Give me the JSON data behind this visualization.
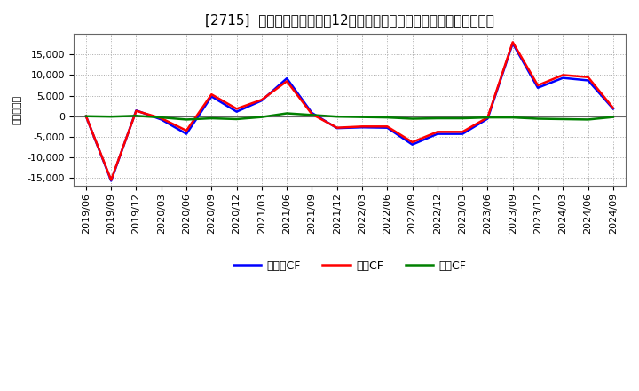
{
  "title": "[2715]  キャッシュフローの12か月移動合計の対前年同期増減額の推移",
  "ylabel": "（百万円）",
  "x_labels": [
    "2019/06",
    "2019/09",
    "2019/12",
    "2020/03",
    "2020/06",
    "2020/09",
    "2020/12",
    "2021/03",
    "2021/06",
    "2021/09",
    "2021/12",
    "2022/03",
    "2022/06",
    "2022/09",
    "2022/12",
    "2023/03",
    "2023/06",
    "2023/09",
    "2023/12",
    "2024/03",
    "2024/06",
    "2024/09"
  ],
  "operating_cf": [
    0,
    -15500,
    1300,
    -500,
    -3500,
    5300,
    1800,
    4000,
    8500,
    500,
    -2800,
    -2500,
    -2500,
    -6300,
    -3800,
    -3800,
    -300,
    18000,
    7500,
    10000,
    9500,
    2000
  ],
  "investing_cf": [
    0,
    -100,
    100,
    -300,
    -800,
    -500,
    -700,
    -200,
    700,
    300,
    -100,
    -200,
    -300,
    -600,
    -500,
    -500,
    -300,
    -300,
    -600,
    -700,
    -800,
    -200
  ],
  "free_cf": [
    0,
    -15700,
    1400,
    -800,
    -4300,
    4800,
    1100,
    3800,
    9200,
    800,
    -2900,
    -2700,
    -2800,
    -6900,
    -4300,
    -4300,
    -600,
    17700,
    6900,
    9300,
    8700,
    1800
  ],
  "operating_color": "#ff0000",
  "investing_color": "#008000",
  "free_color": "#0000ff",
  "ylim": [
    -17000,
    20000
  ],
  "yticks": [
    -15000,
    -10000,
    -5000,
    0,
    5000,
    10000,
    15000
  ],
  "background_color": "#ffffff",
  "plot_bg_color": "#ffffff",
  "grid_color": "#aaaaaa",
  "title_fontsize": 11,
  "axis_fontsize": 8,
  "tick_fontsize": 8,
  "legend_fontsize": 9,
  "legend_labels": [
    "営業CF",
    "投資CF",
    "フリーCF"
  ]
}
